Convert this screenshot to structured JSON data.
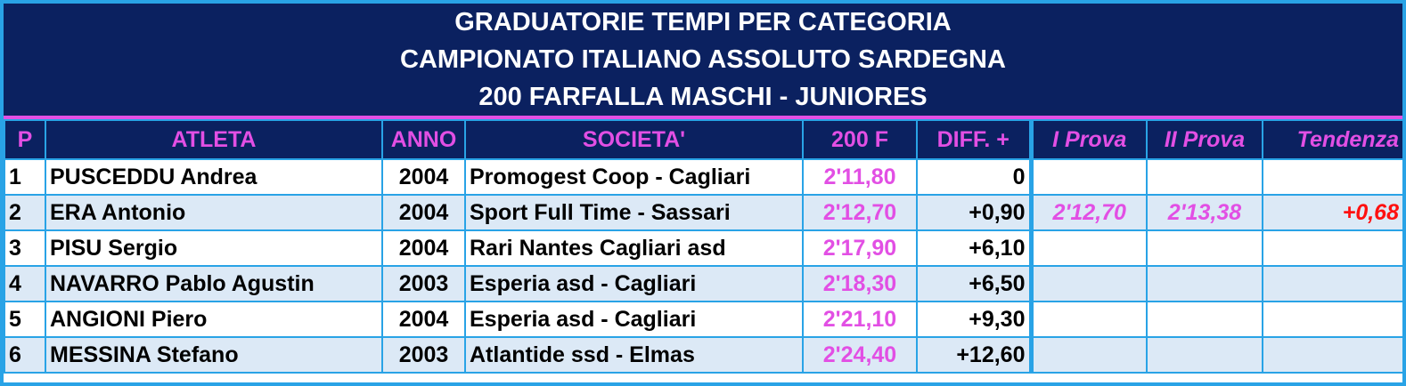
{
  "header": {
    "title": [
      "GRADUATORIE TEMPI PER CATEGORIA",
      "CAMPIONATO ITALIANO ASSOLUTO SARDEGNA",
      "200 FARFALLA MASCHI - JUNIORES"
    ]
  },
  "table": {
    "columns": [
      "P",
      "ATLETA",
      "ANNO",
      "SOCIETA'",
      "200 F",
      "DIFF. +",
      "I Prova",
      "II Prova",
      "Tendenza"
    ],
    "rows": [
      {
        "p": "1",
        "atleta": "PUSCEDDU Andrea",
        "anno": "2004",
        "societa": "Promogest Coop - Cagliari",
        "tempo": "2'11,80",
        "diff": "0"
      },
      {
        "p": "2",
        "atleta": "ERA Antonio",
        "anno": "2004",
        "societa": "Sport Full Time - Sassari",
        "tempo": "2'12,70",
        "diff": "+0,90",
        "prova1": "2'12,70",
        "prova2": "2'13,38",
        "tendenza": "+0,68"
      },
      {
        "p": "3",
        "atleta": "PISU Sergio",
        "anno": "2004",
        "societa": "Rari Nantes Cagliari asd",
        "tempo": "2'17,90",
        "diff": "+6,10"
      },
      {
        "p": "4",
        "atleta": "NAVARRO Pablo Agustin",
        "anno": "2003",
        "societa": "Esperia asd - Cagliari",
        "tempo": "2'18,30",
        "diff": "+6,50"
      },
      {
        "p": "5",
        "atleta": "ANGIONI Piero",
        "anno": "2004",
        "societa": "Esperia asd - Cagliari",
        "tempo": "2'21,10",
        "diff": "+9,30"
      },
      {
        "p": "6",
        "atleta": "MESSINA Stefano",
        "anno": "2003",
        "societa": "Atlantide ssd - Elmas",
        "tempo": "2'24,40",
        "diff": "+12,60"
      }
    ]
  }
}
